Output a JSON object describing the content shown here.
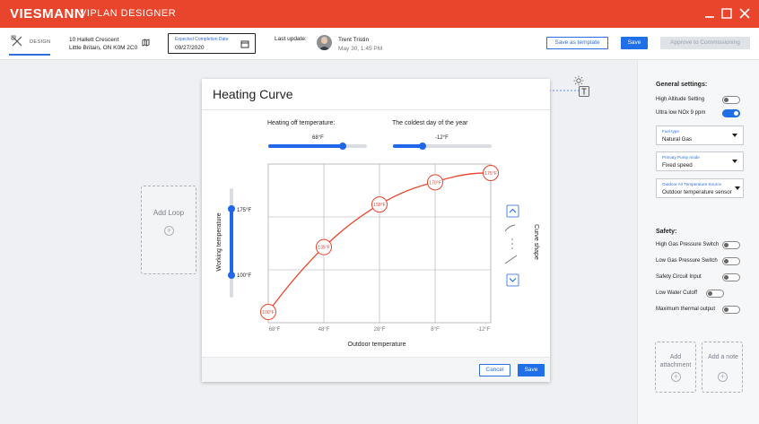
{
  "titlebar": {
    "brand": "VIESMANN",
    "app_name": "VIPLAN DESIGNER"
  },
  "toolbar": {
    "design_tab": "DESIGN",
    "address_line1": "10 Hallett Crescent",
    "address_line2": "Little Britain, ON K0M 2C0",
    "date_caption": "Expected Completion Date",
    "date_value": "09/27/2020",
    "last_update_label": "Last update:",
    "user_name": "Trent Tristin",
    "user_timestamp": "May 30, 1:45 PM",
    "save_template_label": "Save as template",
    "save_label": "Save",
    "approve_label": "Approve to Commissioning"
  },
  "canvas": {
    "add_loop_label": "Add Loop"
  },
  "modal": {
    "title": "Heating Curve",
    "heating_off_label": "Heating off temperature:",
    "heating_off_value": "68°F",
    "heating_off_fraction": 0.75,
    "coldest_day_label": "The coldest day of the year",
    "coldest_day_value": "-12°F",
    "coldest_day_fraction": 0.3,
    "working_temp_label": "Working temperature",
    "working_top": "175°F",
    "working_bottom": "100°F",
    "curve_shape_label": "Curve shape",
    "x_axis_label": "Outdoor temperature",
    "cancel_label": "Cancel",
    "save_label": "Save"
  },
  "chart_data": {
    "type": "line",
    "x_ticks": [
      "68°F",
      "48°F",
      "28°F",
      "8°F",
      "-12°F"
    ],
    "x": [
      68,
      48,
      28,
      8,
      -12
    ],
    "xlim": [
      68,
      -12
    ],
    "ylim": [
      100,
      175
    ],
    "points": [
      {
        "x": 68,
        "y": 100,
        "label": "100°F"
      },
      {
        "x": 48,
        "y": 135,
        "label": "135°F"
      },
      {
        "x": 28,
        "y": 158,
        "label": "158°F"
      },
      {
        "x": 8,
        "y": 170,
        "label": "170°F"
      },
      {
        "x": -12,
        "y": 175,
        "label": "175°F"
      }
    ],
    "xlabel": "Outdoor temperature",
    "ylabel": "Working temperature",
    "grid": true,
    "line_color": "#e8452c"
  },
  "right_panel": {
    "general_heading": "General settings:",
    "general_toggles": [
      {
        "label": "High Altitude Setting",
        "on": false
      },
      {
        "label": "Ultra low NOx 9 ppm",
        "on": true
      }
    ],
    "selects": [
      {
        "caption": "Fuel type",
        "value": "Natural Gas"
      },
      {
        "caption": "Primary Pump mode",
        "value": "Fixed speed"
      },
      {
        "caption": "Outdoor Air Temperature Source",
        "value": "Outdoor temperature sensor"
      }
    ],
    "safety_heading": "Safety:",
    "safety_toggles": [
      {
        "label": "High Gas Pressure Switch",
        "on": false
      },
      {
        "label": "Low Gas Pressure Switch",
        "on": false
      },
      {
        "label": "Safety Circuit Input",
        "on": false
      },
      {
        "label": "Low Water Cutoff",
        "on": false
      },
      {
        "label": "Maximum thermal output",
        "on": false
      }
    ],
    "add_attachment": "Add attachment",
    "add_note": "Add a note"
  },
  "colors": {
    "brand": "#e8452c",
    "accent": "#1f6fe8"
  }
}
